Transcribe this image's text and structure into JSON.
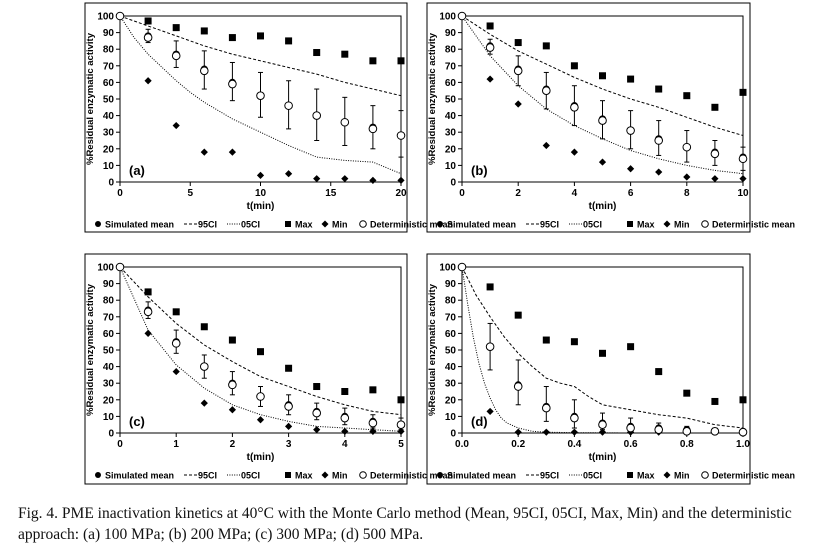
{
  "caption": "Fig. 4. PME inactivation kinetics at 40°C with the Monte Carlo method (Mean, 95CI, 05CI, Max, Min) and the deterministic approach: (a) 100 MPa; (b) 200 MPa; (c) 300 MPa; (d) 500 MPa.",
  "legend_labels": [
    "Simulated mean",
    "95CI",
    "05CI",
    "Max",
    "Min",
    "Deterministic mean"
  ],
  "chart_data": [
    {
      "type": "scatter",
      "panel": "(a)",
      "xlabel": "t(min)",
      "ylabel": "%Residual enzymatic activity",
      "xlim": [
        0,
        20
      ],
      "ylim": [
        0,
        100
      ],
      "xticks": [
        0,
        5,
        10,
        15,
        20
      ],
      "xticklabels": [
        "0",
        "5",
        "10",
        "15",
        "20"
      ],
      "yticks": [
        0,
        10,
        20,
        30,
        40,
        50,
        60,
        70,
        80,
        90,
        100
      ],
      "series": [
        {
          "name": "Simulated mean",
          "x": [
            0,
            2,
            4,
            6,
            8,
            10,
            12,
            14,
            16,
            18,
            20
          ],
          "values": [
            100,
            88,
            77,
            68,
            60,
            52,
            46,
            40,
            36,
            33,
            28
          ]
        },
        {
          "name": "95CI",
          "x": [
            0,
            1,
            2,
            3,
            4,
            6,
            8,
            10,
            12,
            14,
            16,
            18,
            20
          ],
          "values": [
            100,
            97,
            94,
            91,
            88,
            82,
            77,
            73,
            69,
            65,
            60,
            56,
            52
          ]
        },
        {
          "name": "05CI",
          "x": [
            0,
            1,
            2,
            3,
            4,
            5,
            6,
            8,
            10,
            12,
            14,
            16,
            18,
            20
          ],
          "values": [
            100,
            87,
            77,
            69,
            61,
            54,
            48,
            38,
            30,
            22,
            15,
            13,
            12,
            5
          ]
        },
        {
          "name": "Max",
          "x": [
            2,
            4,
            6,
            8,
            10,
            12,
            14,
            16,
            18,
            20
          ],
          "values": [
            97,
            93,
            91,
            87,
            88,
            85,
            78,
            77,
            73,
            73
          ]
        },
        {
          "name": "Min",
          "x": [
            2,
            4,
            6,
            8,
            10,
            12,
            14,
            16,
            18,
            20
          ],
          "values": [
            61,
            34,
            18,
            18,
            4,
            5,
            2,
            2,
            1,
            1
          ]
        },
        {
          "name": "Deterministic mean",
          "x": [
            0,
            2,
            4,
            6,
            8,
            10,
            12,
            14,
            16,
            18,
            20
          ],
          "values": [
            100,
            87,
            76,
            67,
            59,
            52,
            46,
            40,
            36,
            32,
            28
          ]
        }
      ],
      "error_bars": {
        "x": [
          2,
          4,
          6,
          8,
          10,
          12,
          14,
          16,
          18,
          20
        ],
        "low": [
          84,
          69,
          56,
          49,
          39,
          32,
          25,
          22,
          20,
          15
        ],
        "high": [
          92,
          85,
          79,
          72,
          66,
          61,
          56,
          51,
          46,
          43
        ]
      }
    },
    {
      "type": "scatter",
      "panel": "(b)",
      "xlabel": "t(min)",
      "ylabel": "%Residual enzymatic activity",
      "xlim": [
        0,
        10
      ],
      "ylim": [
        0,
        100
      ],
      "xticks": [
        0,
        2,
        4,
        6,
        8,
        10
      ],
      "xticklabels": [
        "0",
        "2",
        "4",
        "6",
        "8",
        "10"
      ],
      "yticks": [
        0,
        10,
        20,
        30,
        40,
        50,
        60,
        70,
        80,
        90,
        100
      ],
      "series": [
        {
          "name": "Simulated mean",
          "x": [
            0,
            1,
            2,
            3,
            4,
            5,
            6,
            7,
            8,
            9,
            10
          ],
          "values": [
            100,
            82,
            68,
            56,
            46,
            38,
            31,
            26,
            21,
            18,
            15
          ]
        },
        {
          "name": "95CI",
          "x": [
            0,
            1,
            2,
            3,
            4,
            5,
            6,
            7,
            8,
            9,
            10
          ],
          "values": [
            100,
            89,
            79,
            71,
            63,
            56,
            50,
            45,
            39,
            33,
            28
          ]
        },
        {
          "name": "05CI",
          "x": [
            0,
            1,
            2,
            3,
            4,
            5,
            6,
            7,
            8,
            9,
            10
          ],
          "values": [
            100,
            76,
            58,
            44,
            34,
            26,
            19,
            14,
            10,
            7,
            5
          ]
        },
        {
          "name": "Max",
          "x": [
            1,
            2,
            3,
            4,
            5,
            6,
            7,
            8,
            9,
            10
          ],
          "values": [
            94,
            84,
            82,
            70,
            64,
            62,
            56,
            52,
            45,
            54
          ]
        },
        {
          "name": "Min",
          "x": [
            1,
            2,
            3,
            4,
            5,
            6,
            7,
            8,
            9,
            10
          ],
          "values": [
            62,
            47,
            22,
            18,
            12,
            8,
            6,
            3,
            2,
            2
          ]
        },
        {
          "name": "Deterministic mean",
          "x": [
            0,
            1,
            2,
            3,
            4,
            5,
            6,
            7,
            8,
            9,
            10
          ],
          "values": [
            100,
            81,
            67,
            55,
            45,
            37,
            31,
            25,
            21,
            17,
            14
          ]
        }
      ],
      "error_bars": {
        "x": [
          1,
          2,
          3,
          4,
          5,
          6,
          7,
          8,
          9,
          10
        ],
        "low": [
          77,
          58,
          44,
          34,
          26,
          20,
          16,
          12,
          10,
          7
        ],
        "high": [
          86,
          76,
          66,
          58,
          49,
          43,
          37,
          31,
          25,
          21
        ]
      }
    },
    {
      "type": "scatter",
      "panel": "(c)",
      "xlabel": "t(min)",
      "ylabel": "%Residual enzymatic activity",
      "xlim": [
        0,
        5
      ],
      "ylim": [
        0,
        100
      ],
      "xticks": [
        0,
        1,
        2,
        3,
        4,
        5
      ],
      "xticklabels": [
        "0",
        "1",
        "2",
        "3",
        "4",
        "5"
      ],
      "yticks": [
        0,
        10,
        20,
        30,
        40,
        50,
        60,
        70,
        80,
        90,
        100
      ],
      "series": [
        {
          "name": "Simulated mean",
          "x": [
            0,
            0.5,
            1,
            1.5,
            2,
            2.5,
            3,
            3.5,
            4,
            4.5,
            5
          ],
          "values": [
            100,
            74,
            55,
            40,
            30,
            22,
            17,
            13,
            10,
            7,
            5
          ]
        },
        {
          "name": "95CI",
          "x": [
            0,
            0.5,
            1,
            1.5,
            2,
            2.5,
            3,
            3.5,
            4,
            4.5,
            5
          ],
          "values": [
            100,
            82,
            66,
            53,
            43,
            34,
            28,
            22,
            17,
            13,
            11
          ]
        },
        {
          "name": "05CI",
          "x": [
            0,
            0.5,
            1,
            1.5,
            2,
            2.5,
            3,
            3.5,
            4,
            4.5,
            5
          ],
          "values": [
            100,
            62,
            41,
            27,
            17,
            11,
            7,
            4,
            3,
            2,
            1
          ]
        },
        {
          "name": "Max",
          "x": [
            0.5,
            1,
            1.5,
            2,
            2.5,
            3,
            3.5,
            4,
            4.5,
            5
          ],
          "values": [
            85,
            73,
            64,
            56,
            49,
            39,
            28,
            25,
            26,
            20
          ]
        },
        {
          "name": "Min",
          "x": [
            0.5,
            1,
            1.5,
            2,
            2.5,
            3,
            3.5,
            4,
            4.5,
            5
          ],
          "values": [
            60,
            37,
            18,
            14,
            8,
            4,
            2,
            1,
            1,
            1
          ]
        },
        {
          "name": "Deterministic mean",
          "x": [
            0,
            0.5,
            1,
            1.5,
            2,
            2.5,
            3,
            3.5,
            4,
            4.5,
            5
          ],
          "values": [
            100,
            73,
            54,
            40,
            29,
            22,
            16,
            12,
            9,
            6,
            5
          ]
        }
      ],
      "error_bars": {
        "x": [
          0.5,
          1,
          1.5,
          2,
          2.5,
          3,
          3.5,
          4,
          4.5,
          5
        ],
        "low": [
          69,
          48,
          33,
          23,
          16,
          11,
          8,
          5,
          3,
          2
        ],
        "high": [
          79,
          62,
          47,
          37,
          28,
          23,
          18,
          15,
          11,
          9
        ]
      }
    },
    {
      "type": "scatter",
      "panel": "(d)",
      "xlabel": "t(min)",
      "ylabel": "%Residual enzymatic activity",
      "xlim": [
        0,
        1
      ],
      "ylim": [
        0,
        100
      ],
      "xticks": [
        0,
        0.2,
        0.4,
        0.6,
        0.8,
        1.0
      ],
      "xticklabels": [
        "0.0",
        "0.2",
        "0.4",
        "0.6",
        "0.8",
        "1.0"
      ],
      "yticks": [
        0,
        10,
        20,
        30,
        40,
        50,
        60,
        70,
        80,
        90,
        100
      ],
      "series": [
        {
          "name": "Simulated mean",
          "x": [
            0,
            0.1,
            0.2,
            0.3,
            0.4,
            0.5,
            0.6,
            0.7,
            0.8,
            0.9,
            1.0
          ],
          "values": [
            100,
            52,
            29,
            16,
            10,
            6,
            4,
            3,
            2,
            1,
            1
          ]
        },
        {
          "name": "95CI",
          "x": [
            0,
            0.05,
            0.1,
            0.15,
            0.2,
            0.25,
            0.3,
            0.35,
            0.4,
            0.45,
            0.5,
            0.6,
            0.7,
            0.8,
            0.9,
            1.0
          ],
          "values": [
            100,
            83,
            70,
            58,
            48,
            40,
            33,
            30,
            28,
            22,
            17,
            14,
            11,
            9,
            5,
            3
          ]
        },
        {
          "name": "05CI",
          "x": [
            0,
            0.02,
            0.04,
            0.06,
            0.08,
            0.1,
            0.12,
            0.14,
            0.16,
            0.2,
            0.25,
            0.3,
            0.4,
            0.6,
            0.8,
            1.0
          ],
          "values": [
            100,
            78,
            58,
            42,
            30,
            21,
            14,
            9,
            6,
            3,
            1,
            0.5,
            0.2,
            0,
            0,
            0
          ]
        },
        {
          "name": "Max",
          "x": [
            0.1,
            0.2,
            0.3,
            0.4,
            0.5,
            0.6,
            0.7,
            0.8,
            0.9,
            1.0
          ],
          "values": [
            88,
            71,
            56,
            55,
            48,
            52,
            37,
            24,
            19,
            20
          ]
        },
        {
          "name": "Min",
          "x": [
            0.1,
            0.2,
            0.3,
            0.4,
            0.5,
            0.6,
            0.7,
            0.8,
            0.9,
            1.0
          ],
          "values": [
            13,
            0.5,
            0.5,
            0.5,
            0.5,
            0.5,
            0.5,
            0.5,
            0.5,
            0.5
          ]
        },
        {
          "name": "Deterministic mean",
          "x": [
            0,
            0.1,
            0.2,
            0.3,
            0.4,
            0.5,
            0.6,
            0.7,
            0.8,
            0.9,
            1.0
          ],
          "values": [
            100,
            52,
            28,
            15,
            9,
            5,
            3,
            2,
            1,
            1,
            0.5
          ]
        }
      ],
      "error_bars": {
        "x": [
          0.1,
          0.2,
          0.3,
          0.4,
          0.5,
          0.6,
          0.7,
          0.8,
          0.9,
          1.0
        ],
        "low": [
          38,
          17,
          7,
          3,
          2,
          1,
          1,
          0,
          0,
          0
        ],
        "high": [
          66,
          44,
          28,
          20,
          12,
          9,
          6,
          4,
          3,
          2
        ]
      }
    }
  ]
}
